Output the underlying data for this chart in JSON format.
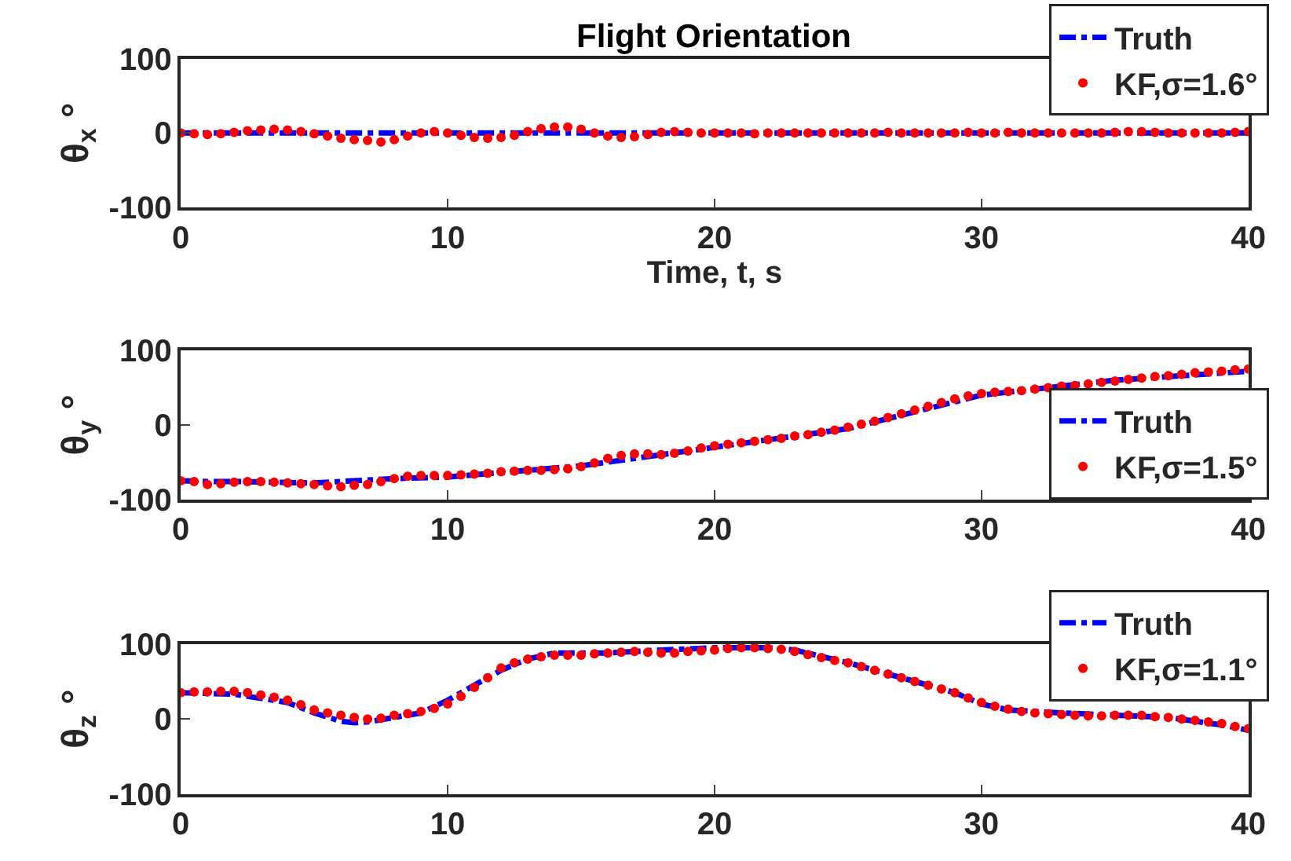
{
  "chart_data": [
    {
      "type": "line",
      "title": "Flight Orientation",
      "xlabel": "Time, t, s",
      "ylabel": "θ$_{x}$ °",
      "xlim": [
        0,
        40
      ],
      "xticks": [
        0,
        10,
        20,
        30,
        40
      ],
      "ylim": [
        -100,
        100
      ],
      "yticks": [
        -100,
        0,
        100
      ],
      "legend": "top right",
      "x": [
        0,
        0.5,
        1,
        1.5,
        2,
        2.5,
        3,
        3.5,
        4,
        4.5,
        5,
        5.5,
        6,
        6.5,
        7,
        7.5,
        8,
        8.5,
        9,
        9.5,
        10,
        10.5,
        11,
        11.5,
        12,
        12.5,
        13,
        13.5,
        14,
        14.5,
        15,
        15.5,
        16,
        16.5,
        17,
        17.5,
        18,
        18.5,
        19,
        19.5,
        20,
        20.5,
        21,
        21.5,
        22,
        22.5,
        23,
        23.5,
        24,
        24.5,
        25,
        25.5,
        26,
        26.5,
        27,
        27.5,
        28,
        28.5,
        29,
        29.5,
        30,
        30.5,
        31,
        31.5,
        32,
        32.5,
        33,
        33.5,
        34,
        34.5,
        35,
        35.5,
        36,
        36.5,
        37,
        37.5,
        38,
        38.5,
        39,
        39.5,
        40
      ],
      "series": [
        {
          "name": "Truth",
          "color": "#0000ff",
          "line_style": "dashed",
          "x": [
            0,
            40
          ],
          "values": [
            0,
            0
          ]
        },
        {
          "name": "KF,σ=1.6°",
          "type": "scatter",
          "marker": "circle",
          "color": "#ff0000",
          "values": [
            0,
            -1,
            -2,
            -1,
            1,
            3,
            4,
            5,
            4,
            2,
            -1,
            -4,
            -7,
            -9,
            -10,
            -12,
            -9,
            -4,
            0,
            2,
            0,
            -3,
            -6,
            -7,
            -6,
            -3,
            2,
            6,
            8,
            8,
            5,
            0,
            -4,
            -6,
            -5,
            -2,
            1,
            2,
            1,
            0,
            0,
            0,
            0,
            -1,
            0,
            0,
            0,
            0,
            0,
            0,
            0,
            0,
            0,
            1,
            0,
            0,
            0,
            0,
            0,
            1,
            0,
            0,
            1,
            0,
            0,
            0,
            0,
            0,
            0,
            0,
            1,
            2,
            2,
            1,
            0,
            0,
            0,
            0,
            0,
            1,
            2
          ]
        }
      ]
    },
    {
      "type": "line",
      "ylabel": "θ$_{y}$ °",
      "xlim": [
        0,
        40
      ],
      "xticks": [
        0,
        10,
        20,
        30,
        40
      ],
      "ylim": [
        -100,
        100
      ],
      "yticks": [
        -100,
        0,
        100
      ],
      "legend": "bottom right",
      "x": [
        0,
        0.5,
        1,
        1.5,
        2,
        2.5,
        3,
        3.5,
        4,
        4.5,
        5,
        5.5,
        6,
        6.5,
        7,
        7.5,
        8,
        8.5,
        9,
        9.5,
        10,
        10.5,
        11,
        11.5,
        12,
        12.5,
        13,
        13.5,
        14,
        14.5,
        15,
        15.5,
        16,
        16.5,
        17,
        17.5,
        18,
        18.5,
        19,
        19.5,
        20,
        20.5,
        21,
        21.5,
        22,
        22.5,
        23,
        23.5,
        24,
        24.5,
        25,
        25.5,
        26,
        26.5,
        27,
        27.5,
        28,
        28.5,
        29,
        29.5,
        30,
        30.5,
        31,
        31.5,
        32,
        32.5,
        33,
        33.5,
        34,
        34.5,
        35,
        35.5,
        36,
        36.5,
        37,
        37.5,
        38,
        38.5,
        39,
        39.5,
        40
      ],
      "series": [
        {
          "name": "Truth",
          "color": "#0000ff",
          "line_style": "dashed",
          "x": [
            0,
            1,
            2,
            5,
            8,
            10,
            15,
            20,
            25,
            30,
            35,
            40
          ],
          "values": [
            -75,
            -76,
            -76,
            -78,
            -72,
            -70,
            -55,
            -30,
            -5,
            40,
            60,
            72
          ]
        },
        {
          "name": "KF,σ=1.5°",
          "type": "scatter",
          "marker": "circle",
          "color": "#ff0000",
          "values": [
            -75,
            -76,
            -80,
            -79,
            -77,
            -76,
            -76,
            -77,
            -78,
            -79,
            -80,
            -82,
            -83,
            -81,
            -80,
            -76,
            -72,
            -69,
            -68,
            -68,
            -68,
            -67,
            -66,
            -65,
            -63,
            -62,
            -61,
            -61,
            -60,
            -59,
            -56,
            -51,
            -45,
            -41,
            -39,
            -39,
            -40,
            -38,
            -35,
            -31,
            -28,
            -26,
            -24,
            -22,
            -20,
            -18,
            -15,
            -13,
            -10,
            -7,
            -3,
            1,
            5,
            10,
            15,
            20,
            25,
            30,
            35,
            39,
            42,
            44,
            45,
            46,
            48,
            50,
            52,
            53,
            55,
            57,
            59,
            61,
            63,
            65,
            66,
            68,
            70,
            71,
            72,
            74,
            75
          ]
        }
      ]
    },
    {
      "type": "line",
      "ylabel": "θ$_{z}$ °",
      "xlim": [
        0,
        40
      ],
      "xticks": [
        0,
        10,
        20,
        30,
        40
      ],
      "ylim": [
        -100,
        100
      ],
      "yticks": [
        -100,
        0,
        100
      ],
      "legend": "top right",
      "x": [
        0,
        0.5,
        1,
        1.5,
        2,
        2.5,
        3,
        3.5,
        4,
        4.5,
        5,
        5.5,
        6,
        6.5,
        7,
        7.5,
        8,
        8.5,
        9,
        9.5,
        10,
        10.5,
        11,
        11.5,
        12,
        12.5,
        13,
        13.5,
        14,
        14.5,
        15,
        15.5,
        16,
        16.5,
        17,
        17.5,
        18,
        18.5,
        19,
        19.5,
        20,
        20.5,
        21,
        21.5,
        22,
        22.5,
        23,
        23.5,
        24,
        24.5,
        25,
        25.5,
        26,
        26.5,
        27,
        27.5,
        28,
        28.5,
        29,
        29.5,
        30,
        30.5,
        31,
        31.5,
        32,
        32.5,
        33,
        33.5,
        34,
        34.5,
        35,
        35.5,
        36,
        36.5,
        37,
        37.5,
        38,
        38.5,
        39,
        39.5,
        40
      ],
      "series": [
        {
          "name": "Truth",
          "color": "#0000ff",
          "line_style": "dashed",
          "x": [
            0,
            2,
            4,
            5,
            6,
            6.5,
            7,
            8,
            9,
            10,
            11,
            12,
            13,
            14,
            16,
            18,
            20,
            22,
            23,
            25,
            27,
            29,
            30,
            31,
            33,
            35,
            37,
            39,
            40
          ],
          "values": [
            35,
            33,
            22,
            8,
            -3,
            -5,
            -4,
            2,
            8,
            25,
            45,
            65,
            80,
            88,
            88,
            92,
            95,
            95,
            92,
            75,
            55,
            35,
            20,
            12,
            8,
            5,
            2,
            -8,
            -15
          ]
        },
        {
          "name": "KF,σ=1.1°",
          "type": "scatter",
          "marker": "circle",
          "color": "#ff0000",
          "values": [
            35,
            36,
            36,
            37,
            37,
            35,
            32,
            29,
            25,
            19,
            12,
            8,
            5,
            2,
            0,
            1,
            5,
            7,
            10,
            14,
            20,
            30,
            42,
            55,
            68,
            75,
            80,
            83,
            85,
            85,
            85,
            87,
            88,
            89,
            90,
            89,
            88,
            88,
            90,
            91,
            92,
            94,
            95,
            95,
            94,
            93,
            90,
            86,
            82,
            78,
            75,
            70,
            65,
            60,
            55,
            50,
            45,
            40,
            35,
            28,
            22,
            17,
            13,
            10,
            8,
            7,
            6,
            5,
            4,
            4,
            5,
            5,
            5,
            3,
            2,
            0,
            -2,
            -4,
            -6,
            -10,
            -13
          ]
        }
      ]
    }
  ]
}
